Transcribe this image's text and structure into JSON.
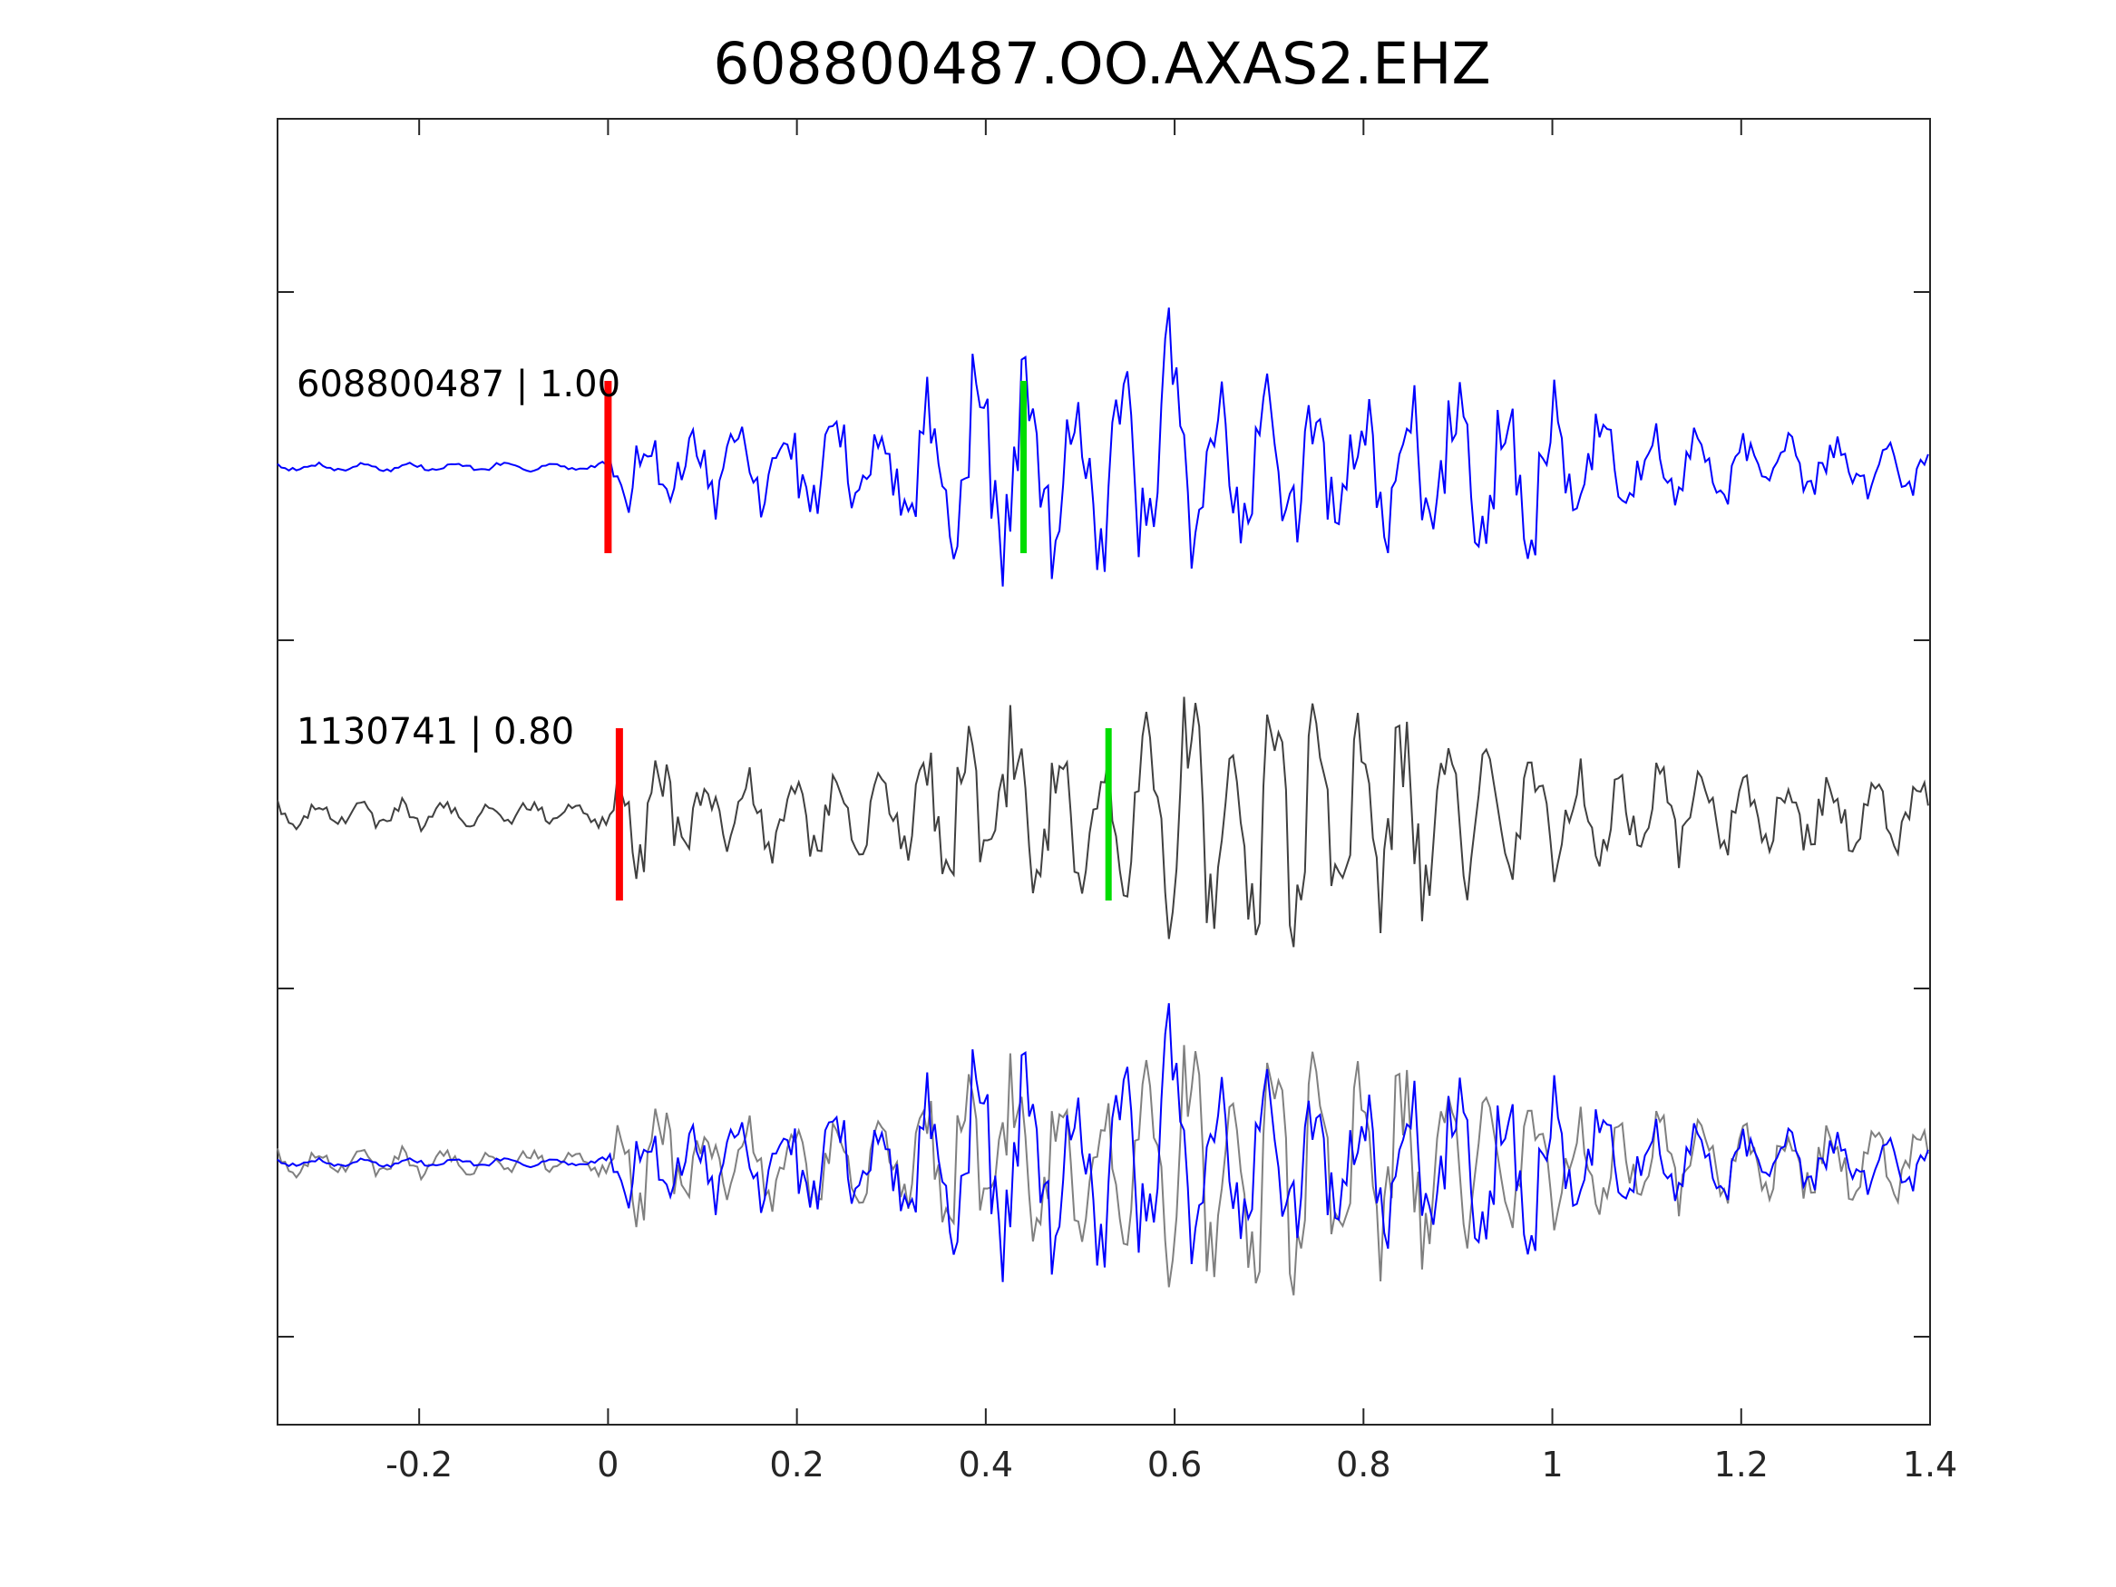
{
  "chart_data": {
    "type": "line",
    "title": "608800487.OO.AXAS2.EHZ",
    "xlabel": "",
    "ylabel": "",
    "xlim": [
      -0.35,
      1.4
    ],
    "x_ticks": [
      -0.2,
      0,
      0.2,
      0.4,
      0.6,
      0.8,
      1,
      1.2,
      1.4
    ],
    "x_tick_labels": [
      "-0.2",
      "0",
      "0.2",
      "0.4",
      "0.6",
      "0.8",
      "1",
      "1.2",
      "1.4"
    ],
    "grid": false,
    "colors": {
      "template": "#0000ff",
      "detection": "#404040",
      "overlay_detection": "#808080",
      "p_pick": "#ff0000",
      "s_pick": "#00dd00",
      "axes": "#262626"
    },
    "traces": [
      {
        "label": "608800487 | 1.00",
        "id": "608800487",
        "correlation": 1.0,
        "color": "#0000ff",
        "p_pick_time": 0.0,
        "s_pick_time": 0.44,
        "envelope": [
          [
            -0.35,
            0.03
          ],
          [
            -0.01,
            0.03
          ],
          [
            0.0,
            0.05
          ],
          [
            0.02,
            0.3
          ],
          [
            0.06,
            0.25
          ],
          [
            0.1,
            0.3
          ],
          [
            0.15,
            0.32
          ],
          [
            0.2,
            0.35
          ],
          [
            0.3,
            0.45
          ],
          [
            0.35,
            0.7
          ],
          [
            0.38,
            0.85
          ],
          [
            0.4,
            0.8
          ],
          [
            0.46,
            0.7
          ],
          [
            0.5,
            0.75
          ],
          [
            0.55,
            0.7
          ],
          [
            0.6,
            1.0
          ],
          [
            0.64,
            0.65
          ],
          [
            0.7,
            0.6
          ],
          [
            0.8,
            0.6
          ],
          [
            0.9,
            0.55
          ],
          [
            0.96,
            0.65
          ],
          [
            1.05,
            0.35
          ],
          [
            1.1,
            0.35
          ],
          [
            1.2,
            0.25
          ],
          [
            1.3,
            0.22
          ],
          [
            1.4,
            0.18
          ]
        ]
      },
      {
        "label": "1130741 | 0.80",
        "id": "1130741",
        "correlation": 0.8,
        "color": "#404040",
        "p_pick_time": 0.012,
        "s_pick_time": 0.53,
        "envelope": [
          [
            -0.35,
            0.1
          ],
          [
            -0.01,
            0.1
          ],
          [
            0.0,
            0.12
          ],
          [
            0.03,
            0.45
          ],
          [
            0.08,
            0.4
          ],
          [
            0.15,
            0.3
          ],
          [
            0.2,
            0.3
          ],
          [
            0.3,
            0.35
          ],
          [
            0.37,
            0.6
          ],
          [
            0.42,
            0.75
          ],
          [
            0.48,
            0.5
          ],
          [
            0.55,
            0.55
          ],
          [
            0.6,
            0.95
          ],
          [
            0.65,
            0.9
          ],
          [
            0.72,
            0.9
          ],
          [
            0.76,
            0.85
          ],
          [
            0.8,
            0.8
          ],
          [
            0.88,
            0.65
          ],
          [
            0.95,
            0.45
          ],
          [
            1.05,
            0.4
          ],
          [
            1.1,
            0.35
          ],
          [
            1.2,
            0.3
          ],
          [
            1.3,
            0.25
          ],
          [
            1.4,
            0.22
          ]
        ]
      }
    ],
    "overlay": {
      "description_series": [
        "608800487",
        "1130741"
      ],
      "colors": [
        "#0000ff",
        "#808080"
      ]
    }
  }
}
